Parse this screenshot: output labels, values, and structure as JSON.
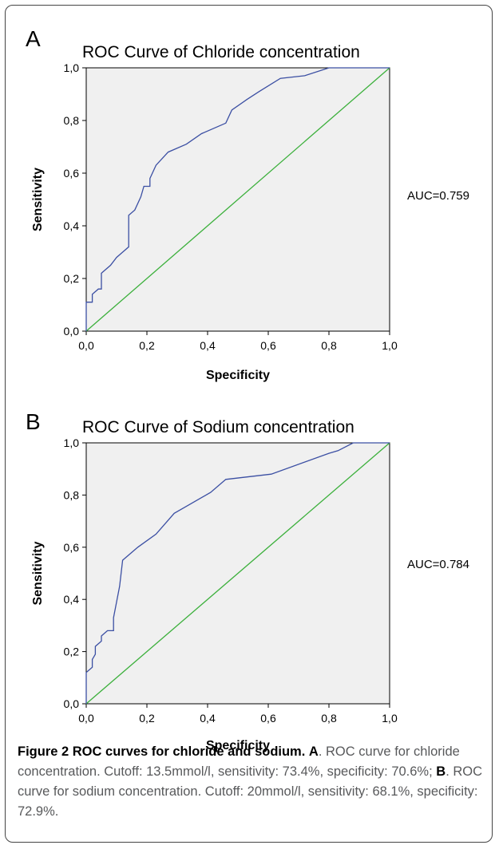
{
  "chart_data": [
    {
      "type": "line",
      "panel_label": "A",
      "title": "ROC Curve of Chloride concentration",
      "xlabel": "Specificity",
      "ylabel": "Sensitivity",
      "xlim": [
        0,
        1
      ],
      "ylim": [
        0,
        1
      ],
      "xticks": [
        "0,0",
        "0,2",
        "0,4",
        "0,6",
        "0,8",
        "1,0"
      ],
      "yticks": [
        "0,0",
        "0,2",
        "0,4",
        "0,6",
        "0,8",
        "1,0"
      ],
      "annotation": "AUC=0.759",
      "background_color": "#f0f0f0",
      "series": [
        {
          "color": "#3b4fa3",
          "points": [
            [
              0,
              0
            ],
            [
              0,
              0.11
            ],
            [
              0.02,
              0.11
            ],
            [
              0.02,
              0.14
            ],
            [
              0.04,
              0.16
            ],
            [
              0.05,
              0.16
            ],
            [
              0.05,
              0.22
            ],
            [
              0.08,
              0.25
            ],
            [
              0.1,
              0.28
            ],
            [
              0.12,
              0.3
            ],
            [
              0.14,
              0.32
            ],
            [
              0.14,
              0.44
            ],
            [
              0.16,
              0.46
            ],
            [
              0.18,
              0.51
            ],
            [
              0.19,
              0.55
            ],
            [
              0.21,
              0.55
            ],
            [
              0.21,
              0.58
            ],
            [
              0.23,
              0.63
            ],
            [
              0.27,
              0.68
            ],
            [
              0.33,
              0.71
            ],
            [
              0.38,
              0.75
            ],
            [
              0.46,
              0.79
            ],
            [
              0.48,
              0.84
            ],
            [
              0.53,
              0.88
            ],
            [
              0.57,
              0.91
            ],
            [
              0.64,
              0.96
            ],
            [
              0.72,
              0.97
            ],
            [
              0.8,
              1.0
            ],
            [
              1.0,
              1.0
            ]
          ]
        },
        {
          "color": "#3cb03c",
          "points": [
            [
              0,
              0
            ],
            [
              1,
              1
            ]
          ]
        }
      ]
    },
    {
      "type": "line",
      "panel_label": "B",
      "title": "ROC Curve of Sodium concentration",
      "xlabel": "Specificity",
      "ylabel": "Sensitivity",
      "xlim": [
        0,
        1
      ],
      "ylim": [
        0,
        1
      ],
      "xticks": [
        "0,0",
        "0,2",
        "0,4",
        "0,6",
        "0,8",
        "1,0"
      ],
      "yticks": [
        "0,0",
        "0,2",
        "0,4",
        "0,6",
        "0,8",
        "1,0"
      ],
      "annotation": "AUC=0.784",
      "background_color": "#f0f0f0",
      "series": [
        {
          "color": "#3b4fa3",
          "points": [
            [
              0,
              0
            ],
            [
              0,
              0.12
            ],
            [
              0.02,
              0.14
            ],
            [
              0.02,
              0.17
            ],
            [
              0.03,
              0.19
            ],
            [
              0.03,
              0.22
            ],
            [
              0.05,
              0.24
            ],
            [
              0.05,
              0.26
            ],
            [
              0.07,
              0.28
            ],
            [
              0.09,
              0.28
            ],
            [
              0.09,
              0.33
            ],
            [
              0.11,
              0.45
            ],
            [
              0.12,
              0.55
            ],
            [
              0.17,
              0.6
            ],
            [
              0.23,
              0.65
            ],
            [
              0.29,
              0.73
            ],
            [
              0.35,
              0.77
            ],
            [
              0.41,
              0.81
            ],
            [
              0.46,
              0.86
            ],
            [
              0.61,
              0.88
            ],
            [
              0.8,
              0.96
            ],
            [
              0.83,
              0.97
            ],
            [
              0.88,
              1.0
            ],
            [
              1.0,
              1.0
            ]
          ]
        },
        {
          "color": "#3cb03c",
          "points": [
            [
              0,
              0
            ],
            [
              1,
              1
            ]
          ]
        }
      ]
    }
  ],
  "caption": {
    "title_bold": "Figure 2 ROC curves for chloride and sodium.",
    "part_a_label": "A",
    "part_a_text": ". ROC curve for chloride concentration. Cutoff: 13.5mmol/l, sensitivity: 73.4%, specificity: 70.6%; ",
    "part_b_label": "B",
    "part_b_text": ". ROC curve for sodium concentration. Cutoff: 20mmol/l, sensitivity: 68.1%, specificity: 72.9%."
  }
}
